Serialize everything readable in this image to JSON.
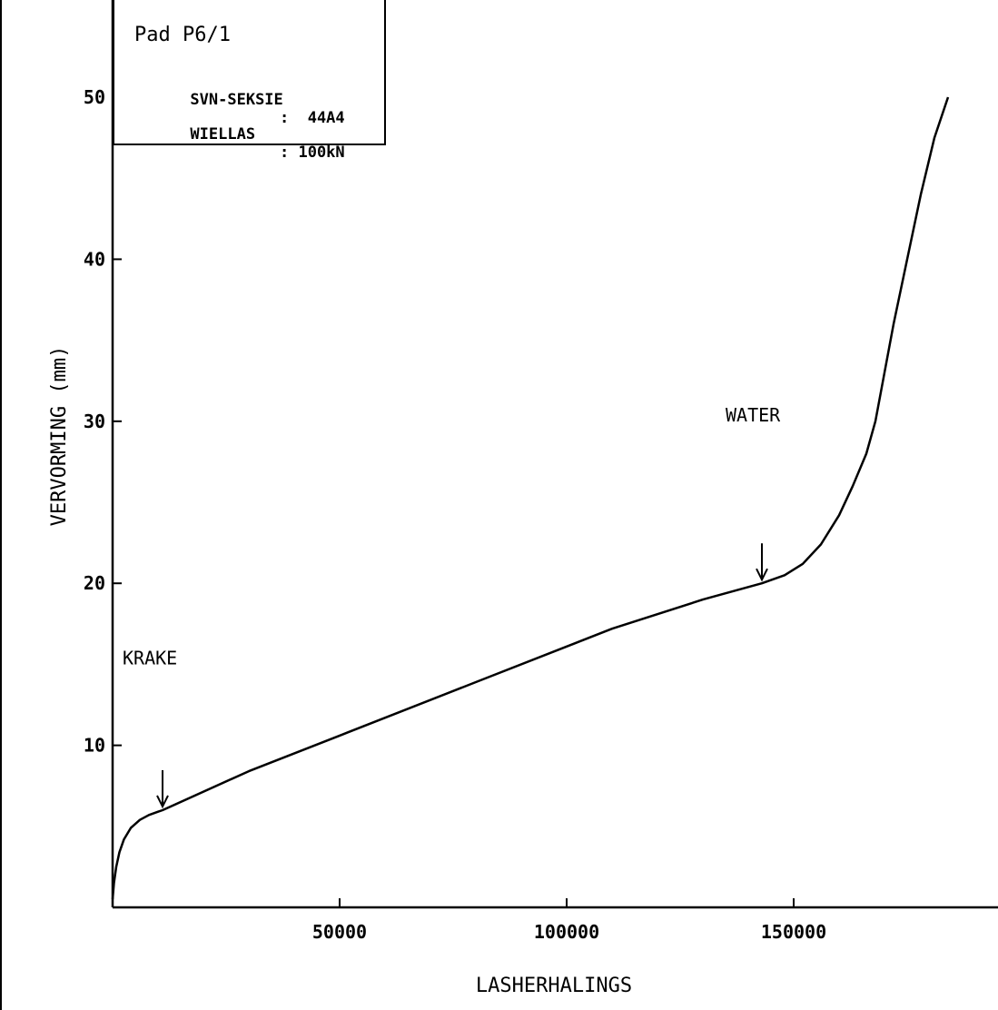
{
  "infobox": {
    "title": "Pad P6/1",
    "row1_label": "SVN-SEKSIE",
    "row1_value": ":  44A4",
    "row2_label": "WIELLAS",
    "row2_value": ": 100kN"
  },
  "chart_data": {
    "type": "line",
    "title": "",
    "xlabel": "LASHERHALINGS",
    "ylabel": "VERVORMING (mm)",
    "xlim": [
      0,
      195000
    ],
    "ylim": [
      0,
      56
    ],
    "xticks": [
      50000,
      100000,
      150000
    ],
    "xtick_labels": [
      "50000",
      "100000",
      "150000"
    ],
    "yticks": [
      10,
      20,
      30,
      40,
      50
    ],
    "ytick_labels": [
      "10",
      "20",
      "30",
      "40",
      "50"
    ],
    "grid": false,
    "legend": "none",
    "series": [
      {
        "x": [
          0,
          300,
          800,
          1500,
          2500,
          4000,
          6000,
          8000,
          10000,
          11000,
          30000,
          50000,
          80000,
          110000,
          130000,
          143000,
          148000,
          152000,
          156000,
          160000,
          163000,
          166000,
          168000,
          170000,
          172000,
          175000,
          178000,
          181000,
          184000
        ],
        "y": [
          0.5,
          1.5,
          2.5,
          3.4,
          4.2,
          4.9,
          5.4,
          5.7,
          5.9,
          6.0,
          8.4,
          10.6,
          13.9,
          17.2,
          19.0,
          20.0,
          20.5,
          21.2,
          22.4,
          24.2,
          26.0,
          28.0,
          30.0,
          33.0,
          36.0,
          40.0,
          44.0,
          47.5,
          50.0
        ]
      }
    ],
    "annotations": [
      {
        "text": "KRAKE",
        "x": 2200,
        "y": 15.0
      },
      {
        "text": "WATER",
        "x": 135000,
        "y": 30.0
      }
    ],
    "arrows": [
      {
        "x": 11000,
        "y": 6.0
      },
      {
        "x": 143000,
        "y": 20.0
      }
    ]
  }
}
